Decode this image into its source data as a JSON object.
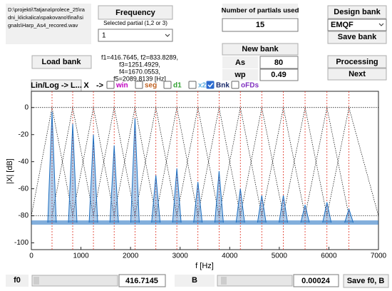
{
  "file_path_lines": [
    "D:\\projekti\\Tatjana\\prolece_25\\ra",
    "dni_klickalica\\spakovano\\final\\si",
    "gnals\\Harp_As4_recored.wav"
  ],
  "buttons": {
    "frequency": "Frequency",
    "design_bank": "Design bank",
    "save_bank": "Save bank",
    "load_bank": "Load bank",
    "new_bank": "New bank",
    "processing": "Processing",
    "next": "Next",
    "linlog": "Lin/Log -> L...",
    "save_f0_b": "Save f0, B"
  },
  "selected_partial": {
    "label": "Selected partial (1,2 or 3)",
    "value": "1"
  },
  "partials_used": {
    "label": "Number of partials used",
    "value": "15"
  },
  "bank_type": "EMQF",
  "partials_text_lines": [
    "f1=416.7645, f2=833.8289,",
    "f3=1251.4929,",
    "f4=1670.0553,",
    "f5=2089.8139 [Hz]"
  ],
  "as": {
    "label": "As",
    "value": "80"
  },
  "wp": {
    "label": "wp",
    "value": "0.49"
  },
  "toolbar": {
    "x": "X",
    "arrow": "->",
    "checkboxes": [
      {
        "label": "win",
        "checked": false,
        "color": "#c000c0"
      },
      {
        "label": "seg",
        "checked": false,
        "color": "#c06020"
      },
      {
        "label": "d1",
        "checked": false,
        "color": "#30a030"
      },
      {
        "label": "x2",
        "checked": false,
        "color": "#60b0e0"
      },
      {
        "label": "Bnk",
        "checked": true,
        "color": "#1a2a6a"
      },
      {
        "label": "oFDs",
        "checked": false,
        "color": "#8030c0"
      }
    ]
  },
  "f0": {
    "label": "f0",
    "value": "416.7145"
  },
  "b": {
    "label": "B",
    "value": "0.00024"
  },
  "chart_data": {
    "type": "line",
    "xlabel": "f [Hz]",
    "ylabel": "|X| [dB]",
    "xlim": [
      0,
      7000
    ],
    "xticks": [
      0,
      1000,
      2000,
      3000,
      4000,
      5000,
      6000,
      7000
    ],
    "ylim": [
      -105,
      12
    ],
    "yticks": [
      0,
      -20,
      -40,
      -60,
      -80,
      -100
    ],
    "partial_hz": [
      416.8,
      833.8,
      1251.5,
      1670.1,
      2089.8,
      2511,
      2934,
      3359,
      3786,
      4215,
      4647,
      5082,
      5520,
      5961,
      6405
    ],
    "marker_color": "#e03020",
    "bank": {
      "color": "#000000",
      "passband_db": 0,
      "stopband_db": -80
    },
    "spectrum": {
      "color": "#1f6fc0",
      "floor_db": -85,
      "peaks_db": [
        -3,
        -12,
        -20,
        -28,
        -8,
        -50,
        -45,
        -55,
        -47,
        -60,
        -65,
        -65,
        -72,
        -70,
        -75
      ]
    }
  }
}
